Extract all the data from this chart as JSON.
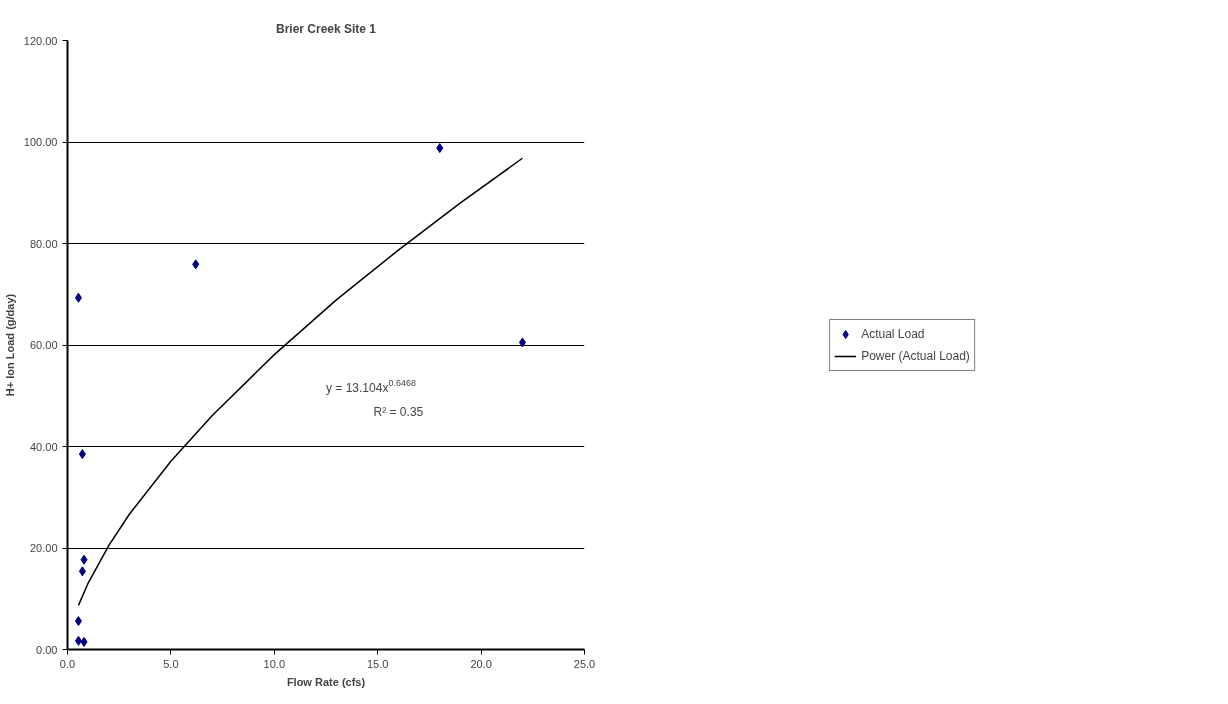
{
  "chart_data": {
    "type": "scatter",
    "title": "Brier Creek Site 1",
    "xlabel": "Flow Rate (cfs)",
    "ylabel": "H+ Ion Load (g/day)",
    "series": [
      {
        "name": "Actual Load",
        "color": "#000080",
        "marker": "diamond",
        "x": [
          0.53,
          0.72,
          0.8,
          0.72,
          0.53,
          0.53,
          0.8,
          6.2,
          18.0,
          22.0
        ],
        "values": [
          69.3,
          38.5,
          17.7,
          15.4,
          5.6,
          1.7,
          1.5,
          75.9,
          98.8,
          60.5
        ]
      },
      {
        "name": "Power (Actual Load)",
        "type": "line",
        "color": "#000000",
        "line_style": "solid",
        "marker": "none",
        "x": [
          0.53,
          1,
          2,
          3,
          5,
          7,
          10,
          13,
          16,
          19,
          22
        ],
        "values": [
          8.7,
          13.1,
          20.5,
          26.7,
          37.1,
          46.1,
          58.1,
          68.9,
          78.7,
          88.0,
          96.8
        ]
      }
    ],
    "annotations": [
      "y = 13.104x$^{0.6468}$",
      "R² = 0.35"
    ],
    "xlim": [
      0,
      25
    ],
    "xticks": [
      {
        "value": 0,
        "label": "0.0"
      },
      {
        "value": 5,
        "label": "5.0"
      },
      {
        "value": 10,
        "label": "10.0"
      },
      {
        "value": 15,
        "label": "15.0"
      },
      {
        "value": 20,
        "label": "20.0"
      },
      {
        "value": 25,
        "label": "25.0"
      }
    ],
    "ylim": [
      0,
      120
    ],
    "yticks": [
      {
        "value": 0,
        "label": "0.00"
      },
      {
        "value": 20,
        "label": "20.00"
      },
      {
        "value": 40,
        "label": "40.00"
      },
      {
        "value": 60,
        "label": "60.00"
      },
      {
        "value": 80,
        "label": "80.00"
      },
      {
        "value": 100,
        "label": "100.00"
      },
      {
        "value": 120,
        "label": "120.00"
      }
    ],
    "grid": "y",
    "legend": "right"
  }
}
